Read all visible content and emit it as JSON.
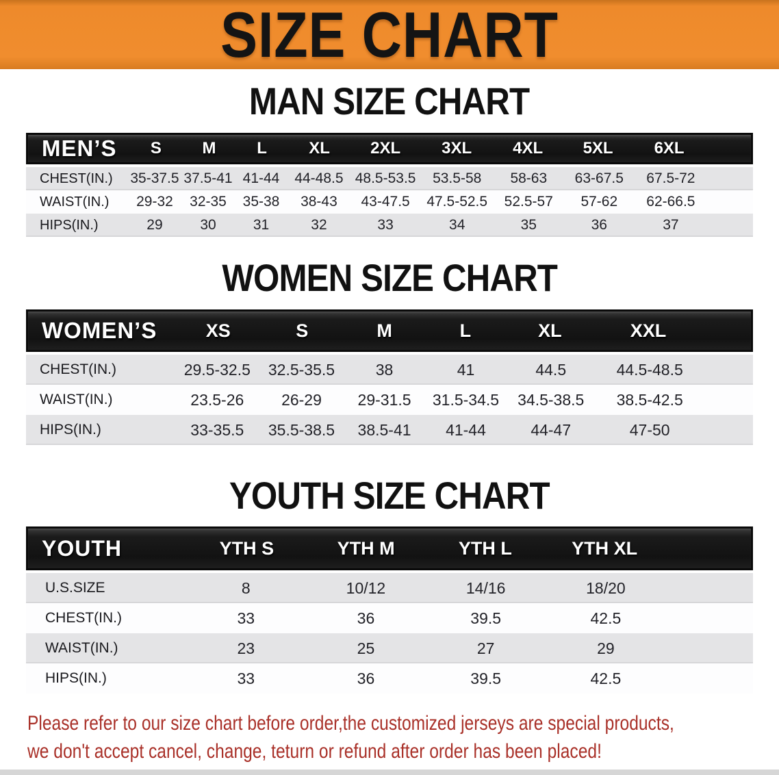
{
  "banner": {
    "title": "SIZE CHART"
  },
  "sections": {
    "men": {
      "title": "MAN SIZE CHART",
      "group_label": "MEN’S",
      "sizes": [
        "S",
        "M",
        "L",
        "XL",
        "2XL",
        "3XL",
        "4XL",
        "5XL",
        "6XL"
      ],
      "rows": [
        {
          "label": "CHEST(IN.)",
          "values": [
            "35-37.5",
            "37.5-41",
            "41-44",
            "44-48.5",
            "48.5-53.5",
            "53.5-58",
            "58-63",
            "63-67.5",
            "67.5-72"
          ]
        },
        {
          "label": "WAIST(IN.)",
          "values": [
            "29-32",
            "32-35",
            "35-38",
            "38-43",
            "43-47.5",
            "47.5-52.5",
            "52.5-57",
            "57-62",
            "62-66.5"
          ]
        },
        {
          "label": "HIPS(IN.)",
          "values": [
            "29",
            "30",
            "31",
            "32",
            "33",
            "34",
            "35",
            "36",
            "37"
          ]
        }
      ]
    },
    "women": {
      "title": "WOMEN SIZE CHART",
      "group_label": "WOMEN’S",
      "sizes": [
        "XS",
        "S",
        "M",
        "L",
        "XL",
        "XXL"
      ],
      "rows": [
        {
          "label": "CHEST(IN.)",
          "values": [
            "29.5-32.5",
            "32.5-35.5",
            "38",
            "41",
            "44.5",
            "44.5-48.5"
          ]
        },
        {
          "label": "WAIST(IN.)",
          "values": [
            "23.5-26",
            "26-29",
            "29-31.5",
            "31.5-34.5",
            "34.5-38.5",
            "38.5-42.5"
          ]
        },
        {
          "label": "HIPS(IN.)",
          "values": [
            "33-35.5",
            "35.5-38.5",
            "38.5-41",
            "41-44",
            "44-47",
            "47-50"
          ]
        }
      ]
    },
    "youth": {
      "title": "YOUTH SIZE CHART",
      "group_label": "YOUTH",
      "sizes": [
        "YTH S",
        "YTH M",
        "YTH L",
        "YTH XL"
      ],
      "rows": [
        {
          "label": "U.S.SIZE",
          "values": [
            "8",
            "10/12",
            "14/16",
            "18/20"
          ]
        },
        {
          "label": "CHEST(IN.)",
          "values": [
            "33",
            "36",
            "39.5",
            "42.5"
          ]
        },
        {
          "label": "WAIST(IN.)",
          "values": [
            "23",
            "25",
            "27",
            "29"
          ]
        },
        {
          "label": "HIPS(IN.)",
          "values": [
            "33",
            "36",
            "39.5",
            "42.5"
          ]
        }
      ]
    }
  },
  "disclaimer": {
    "line1": "Please refer to our size chart before order,the customized jerseys are special products,",
    "line2": "we don't accept cancel, change, teturn or refund after order has been placed!"
  },
  "colors": {
    "banner_orange": "#ee8a2b",
    "band_black": "#141414",
    "row_gray": "#e4e4e6",
    "disclaimer_red": "#a93028"
  }
}
